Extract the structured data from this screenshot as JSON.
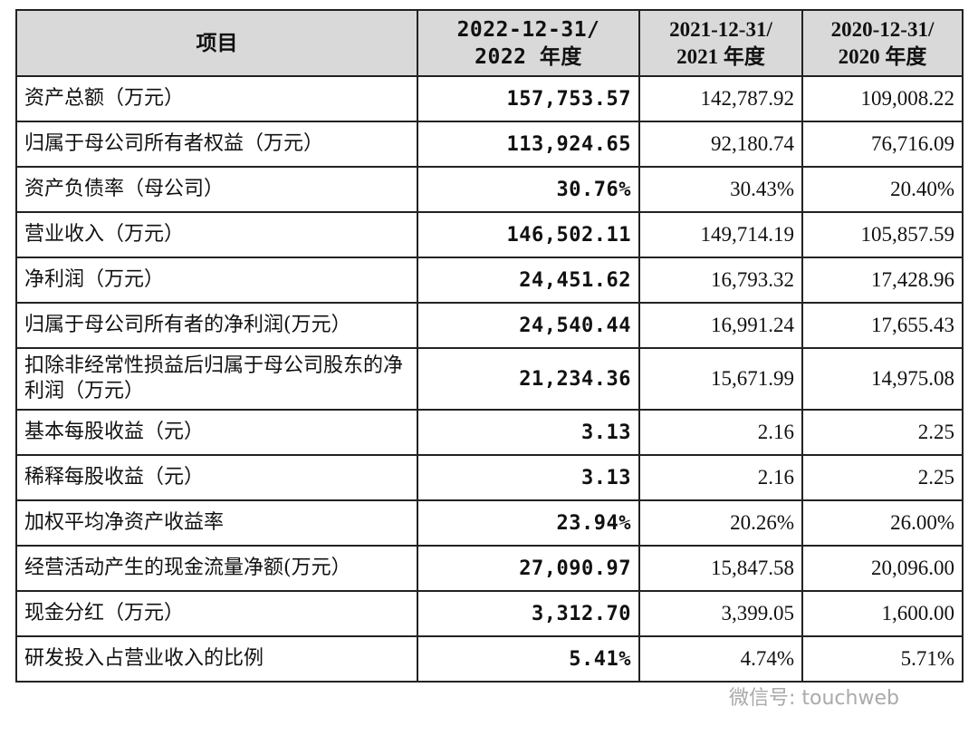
{
  "table": {
    "header": [
      [
        "项目"
      ],
      [
        "2022-12-31/",
        "2022 年度"
      ],
      [
        "2021-12-31/",
        "2021 年度"
      ],
      [
        "2020-12-31/",
        "2020 年度"
      ]
    ],
    "rows": [
      [
        "资产总额（万元）",
        "157,753.57",
        "142,787.92",
        "109,008.22"
      ],
      [
        "归属于母公司所有者权益（万元）",
        "113,924.65",
        "92,180.74",
        "76,716.09"
      ],
      [
        "资产负债率（母公司）",
        "30.76%",
        "30.43%",
        "20.40%"
      ],
      [
        "营业收入（万元）",
        "146,502.11",
        "149,714.19",
        "105,857.59"
      ],
      [
        "净利润（万元）",
        "24,451.62",
        "16,793.32",
        "17,428.96"
      ],
      [
        "归属于母公司所有者的净利润(万元）",
        "24,540.44",
        "16,991.24",
        "17,655.43"
      ],
      [
        "扣除非经常性损益后归属于母公司股东的净利润（万元）",
        "21,234.36",
        "15,671.99",
        "14,975.08"
      ],
      [
        "基本每股收益（元）",
        "3.13",
        "2.16",
        "2.25"
      ],
      [
        "稀释每股收益（元）",
        "3.13",
        "2.16",
        "2.25"
      ],
      [
        "加权平均净资产收益率",
        "23.94%",
        "20.26%",
        "26.00%"
      ],
      [
        "经营活动产生的现金流量净额(万元）",
        "27,090.97",
        "15,847.58",
        "20,096.00"
      ],
      [
        "现金分红（万元）",
        "3,312.70",
        "3,399.05",
        "1,600.00"
      ],
      [
        "研发投入占营业收入的比例",
        "5.41%",
        "4.74%",
        "5.71%"
      ]
    ]
  },
  "watermark": "微信号: touchweb"
}
